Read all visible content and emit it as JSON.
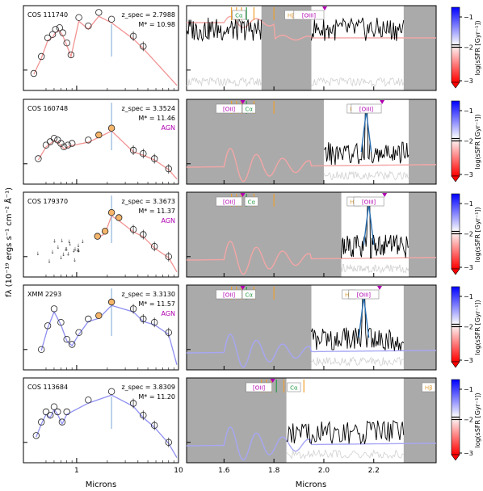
{
  "figure": {
    "ylabel": "fλ (10⁻¹⁹ ergs s⁻¹ cm⁻² Å⁻¹)",
    "left_xlabel": "Microns",
    "right_xlabel": "Microns",
    "colorbar_label": "log(sSFR [Gyr⁻¹])",
    "colorbar_ticks": [
      "−1",
      "−2",
      "−3"
    ]
  },
  "chart_data": [
    {
      "type": "line",
      "panel": "sed-1",
      "name": "COS 111740",
      "zspec_label": "z_spec = 2.7988",
      "mass_label": "M* = 10.98",
      "agn": "",
      "sed_color": "#f08080",
      "x_ticks": [
        "1",
        "10"
      ],
      "xlim": [
        0.3,
        10
      ],
      "points": [
        [
          0.38,
          1.0
        ],
        [
          0.45,
          2.0
        ],
        [
          0.52,
          3.1
        ],
        [
          0.58,
          3.3
        ],
        [
          0.62,
          3.6
        ],
        [
          0.68,
          3.7
        ],
        [
          0.73,
          3.4
        ],
        [
          0.8,
          2.8
        ],
        [
          0.88,
          2.1
        ],
        [
          1.05,
          4.3
        ],
        [
          1.3,
          3.8
        ],
        [
          1.65,
          4.6
        ],
        [
          2.2,
          4.2
        ],
        [
          3.6,
          3.2
        ],
        [
          4.5,
          2.6
        ]
      ]
    },
    {
      "type": "line",
      "panel": "sed-2",
      "name": "COS 160748",
      "zspec_label": "z_spec = 3.3524",
      "mass_label": "M* = 11.46",
      "agn": "AGN",
      "sed_color": "#f08080",
      "points": [
        [
          0.42,
          1.5
        ],
        [
          0.5,
          2.3
        ],
        [
          0.55,
          2.5
        ],
        [
          0.6,
          2.7
        ],
        [
          0.65,
          2.6
        ],
        [
          0.7,
          2.4
        ],
        [
          0.75,
          2.2
        ],
        [
          0.82,
          2.3
        ],
        [
          0.9,
          2.4
        ],
        [
          1.3,
          2.6
        ],
        [
          1.65,
          2.9
        ],
        [
          2.2,
          3.3
        ],
        [
          3.6,
          2.0
        ],
        [
          4.5,
          1.8
        ],
        [
          5.8,
          1.5
        ],
        [
          8.0,
          0.9
        ]
      ]
    },
    {
      "type": "line",
      "panel": "sed-3",
      "name": "COS 179370",
      "zspec_label": "z_spec = 3.3673",
      "mass_label": "M* = 11.37",
      "agn": "AGN",
      "sed_color": "#f08080",
      "points": [
        [
          1.6,
          2.4
        ],
        [
          1.9,
          2.7
        ],
        [
          2.2,
          3.8
        ],
        [
          2.6,
          3.5
        ],
        [
          3.6,
          2.8
        ],
        [
          4.5,
          2.5
        ],
        [
          5.8,
          1.8
        ],
        [
          8.0,
          1.2
        ]
      ]
    },
    {
      "type": "line",
      "panel": "sed-4",
      "name": "XMM 2293",
      "zspec_label": "z_spec = 3.3130",
      "mass_label": "M* = 11.57",
      "agn": "AGN",
      "sed_color": "#7b7bef",
      "points": [
        [
          0.45,
          1.2
        ],
        [
          0.52,
          2.6
        ],
        [
          0.6,
          3.6
        ],
        [
          0.7,
          2.8
        ],
        [
          0.8,
          1.8
        ],
        [
          0.9,
          1.5
        ],
        [
          1.05,
          2.2
        ],
        [
          1.3,
          3.0
        ],
        [
          1.65,
          3.2
        ],
        [
          2.2,
          4.0
        ],
        [
          3.6,
          3.6
        ],
        [
          4.5,
          3.0
        ],
        [
          5.8,
          2.8
        ],
        [
          8.0,
          2.2
        ]
      ]
    },
    {
      "type": "line",
      "panel": "sed-5",
      "name": "COS 113684",
      "zspec_label": "z_spec = 3.8309",
      "mass_label": "M* = 11.20",
      "agn": "",
      "sed_color": "#7b7bef",
      "points": [
        [
          0.4,
          1.6
        ],
        [
          0.45,
          2.4
        ],
        [
          0.5,
          3.0
        ],
        [
          0.55,
          2.8
        ],
        [
          0.6,
          3.3
        ],
        [
          0.65,
          3.0
        ],
        [
          0.72,
          2.4
        ],
        [
          0.8,
          3.0
        ],
        [
          1.3,
          3.7
        ],
        [
          2.2,
          4.2
        ],
        [
          3.6,
          3.5
        ],
        [
          4.5,
          2.8
        ],
        [
          5.8,
          2.2
        ],
        [
          8.0,
          1.2
        ]
      ]
    },
    {
      "type": "line",
      "panel": "spec-1",
      "xlim": [
        1.45,
        2.45
      ],
      "x_ticks": [
        "1.6",
        "1.8",
        "2.0",
        "2.2"
      ],
      "lines": [
        "Cα",
        "Hβ",
        "[OIII]"
      ],
      "model_color": "#f4a6a6"
    },
    {
      "type": "line",
      "panel": "spec-2",
      "lines": [
        "[OII]",
        "Cα",
        "Hβ",
        "[OIII]"
      ],
      "model_color": "#f4a6a6"
    },
    {
      "type": "line",
      "panel": "spec-3",
      "lines": [
        "[OII]",
        "Cα",
        "Hβ",
        "[OIII]"
      ],
      "model_color": "#f4a6a6"
    },
    {
      "type": "line",
      "panel": "spec-4",
      "lines": [
        "[OII]",
        "Cα",
        "Hβ",
        "[OIII]"
      ],
      "model_color": "#a7a7f5"
    },
    {
      "type": "line",
      "panel": "spec-5",
      "lines": [
        "[OII]",
        "Cα",
        "Hβ"
      ],
      "model_color": "#a7a7f5"
    }
  ]
}
